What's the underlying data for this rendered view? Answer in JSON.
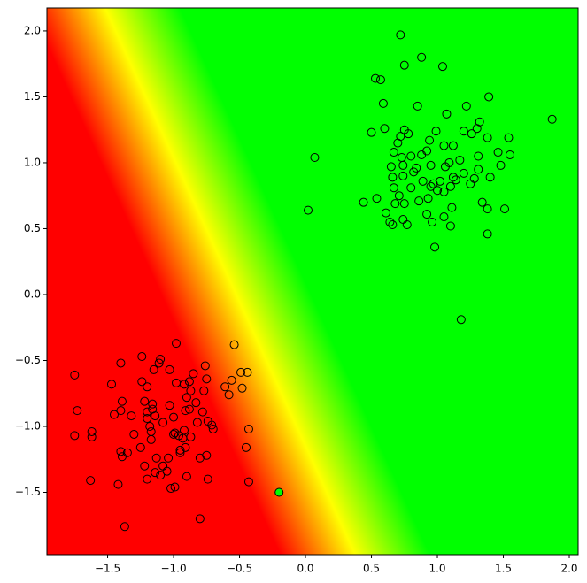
{
  "chart_data": {
    "type": "scatter",
    "background_colors": [
      "#ff0000",
      "#ffff00",
      "#00ff00"
    ],
    "xlim": [
      -1.96,
      2.067
    ],
    "ylim": [
      -1.973,
      2.174
    ],
    "xticks": [
      {
        "value": -1.5,
        "label": "−1.5"
      },
      {
        "value": -1.0,
        "label": "−1.0"
      },
      {
        "value": -0.5,
        "label": "−0.5"
      },
      {
        "value": 0,
        "label": "0.0"
      },
      0.5,
      {
        "value": 1,
        "label": "1.0"
      },
      1.5,
      {
        "value": 2,
        "label": "2.0"
      }
    ],
    "yticks": [
      {
        "value": -1.5,
        "label": "−1.5"
      },
      {
        "value": -1.0,
        "label": "−1.0"
      },
      {
        "value": -0.5,
        "label": "−0.5"
      },
      {
        "value": 0,
        "label": "0.0"
      },
      0.5,
      {
        "value": 1,
        "label": "1.0"
      },
      1.5,
      {
        "value": 2,
        "label": "2.0"
      }
    ],
    "series": [
      {
        "color": "none",
        "edgecolor": "#000000",
        "x": [
          0.72,
          0.75,
          0.88,
          1.04,
          0.53,
          0.57,
          0.85,
          0.59,
          1.22,
          1.39,
          1.87,
          1.07,
          1.32,
          1.3,
          0.5,
          0.6,
          0.75,
          0.78,
          0.99,
          1.2,
          1.26,
          1.38,
          1.54,
          0.72,
          0.7,
          0.94,
          1.05,
          1.12,
          1.46,
          1.55,
          0.67,
          0.73,
          0.8,
          0.88,
          0.92,
          1.09,
          1.17,
          1.31,
          0.07,
          0.65,
          0.74,
          0.84,
          0.95,
          1.06,
          1.31,
          1.48,
          0.82,
          1.12,
          1.4,
          0.66,
          0.74,
          0.89,
          0.97,
          1.02,
          1.14,
          1.2,
          1.28,
          0.67,
          0.8,
          0.95,
          1.0,
          1.1,
          1.25,
          0.54,
          0.71,
          0.93,
          1.05,
          0.44,
          0.68,
          0.75,
          0.86,
          1.11,
          1.34,
          1.38,
          1.51,
          0.02,
          0.61,
          0.92,
          1.05,
          0.64,
          0.74,
          0.96,
          0.66,
          0.77,
          1.1,
          1.38,
          0.98,
          1.18,
          -1.75,
          -1.73,
          -1.75,
          -1.62,
          -1.62,
          -1.63,
          -1.47,
          -1.4,
          -1.39,
          -1.4,
          -1.45,
          -1.32,
          -1.3,
          -1.4,
          -1.39,
          -1.35,
          -1.42,
          -1.37,
          -1.24,
          -1.24,
          -1.2,
          -1.15,
          -1.1,
          -1.11,
          -1.03,
          -0.98,
          -1.22,
          -1.16,
          -1.16,
          -1.2,
          -1.2,
          -1.14,
          -1.08,
          -1.03,
          -1.0,
          -0.98,
          -0.92,
          -0.88,
          -0.85,
          -0.76,
          -0.75,
          -0.9,
          -0.87,
          -0.77,
          -0.83,
          -0.88,
          -0.91,
          -0.92,
          -0.96,
          -0.99,
          -1.0,
          -1.18,
          -1.17,
          -1.17,
          -1.25,
          -1.22,
          -1.13,
          -1.08,
          -1.04,
          -1.05,
          -1.14,
          -1.2,
          -1.1,
          -0.95,
          -0.93,
          -0.91,
          -0.87,
          -0.82,
          -0.78,
          -0.74,
          -0.71,
          -0.7,
          -0.8,
          -0.75,
          -0.74,
          -0.9,
          -0.99,
          -1.02,
          -0.8,
          -0.61,
          -0.58,
          -0.56,
          -0.54,
          -0.49,
          -0.44,
          -0.48,
          -0.43,
          -0.45,
          -0.43,
          -0.95
        ],
        "y": [
          1.97,
          1.74,
          1.8,
          1.73,
          1.64,
          1.63,
          1.43,
          1.45,
          1.43,
          1.5,
          1.33,
          1.37,
          1.31,
          1.26,
          1.23,
          1.26,
          1.25,
          1.22,
          1.24,
          1.24,
          1.22,
          1.19,
          1.19,
          1.2,
          1.15,
          1.17,
          1.13,
          1.13,
          1.08,
          1.06,
          1.08,
          1.04,
          1.05,
          1.06,
          1.09,
          1.0,
          1.02,
          1.05,
          1.04,
          0.97,
          0.98,
          0.96,
          0.98,
          0.97,
          0.95,
          0.98,
          0.93,
          0.89,
          0.89,
          0.89,
          0.9,
          0.86,
          0.84,
          0.86,
          0.87,
          0.92,
          0.88,
          0.81,
          0.81,
          0.82,
          0.79,
          0.82,
          0.84,
          0.73,
          0.75,
          0.73,
          0.78,
          0.7,
          0.69,
          0.69,
          0.71,
          0.66,
          0.7,
          0.65,
          0.65,
          0.64,
          0.62,
          0.61,
          0.59,
          0.55,
          0.57,
          0.55,
          0.53,
          0.53,
          0.52,
          0.46,
          0.36,
          -0.19,
          -0.61,
          -0.88,
          -1.07,
          -1.04,
          -1.08,
          -1.41,
          -0.68,
          -0.52,
          -0.81,
          -0.88,
          -0.91,
          -0.92,
          -1.06,
          -1.19,
          -1.23,
          -1.2,
          -1.44,
          -1.76,
          -0.47,
          -0.66,
          -0.7,
          -0.57,
          -0.49,
          -0.52,
          -0.57,
          -0.37,
          -0.81,
          -0.83,
          -0.87,
          -0.89,
          -0.94,
          -0.92,
          -0.97,
          -0.84,
          -0.93,
          -0.67,
          -0.68,
          -0.66,
          -0.6,
          -0.54,
          -0.64,
          -0.78,
          -0.73,
          -0.73,
          -0.82,
          -0.87,
          -0.88,
          -1.03,
          -1.07,
          -1.05,
          -1.06,
          -1.0,
          -1.04,
          -1.1,
          -1.16,
          -1.3,
          -1.24,
          -1.3,
          -1.24,
          -1.34,
          -1.35,
          -1.4,
          -1.37,
          -1.18,
          -1.09,
          -1.16,
          -1.08,
          -0.97,
          -0.89,
          -0.96,
          -0.99,
          -1.02,
          -1.24,
          -1.22,
          -1.4,
          -1.38,
          -1.46,
          -1.47,
          -1.7,
          -0.7,
          -0.76,
          -0.65,
          -0.38,
          -0.59,
          -0.59,
          -0.71,
          -1.02,
          -1.16,
          -1.42,
          -1.2
        ]
      },
      {
        "color": "#00ff00",
        "edgecolor": "#000000",
        "x": [
          -0.2
        ],
        "y": [
          -1.5
        ]
      }
    ]
  }
}
